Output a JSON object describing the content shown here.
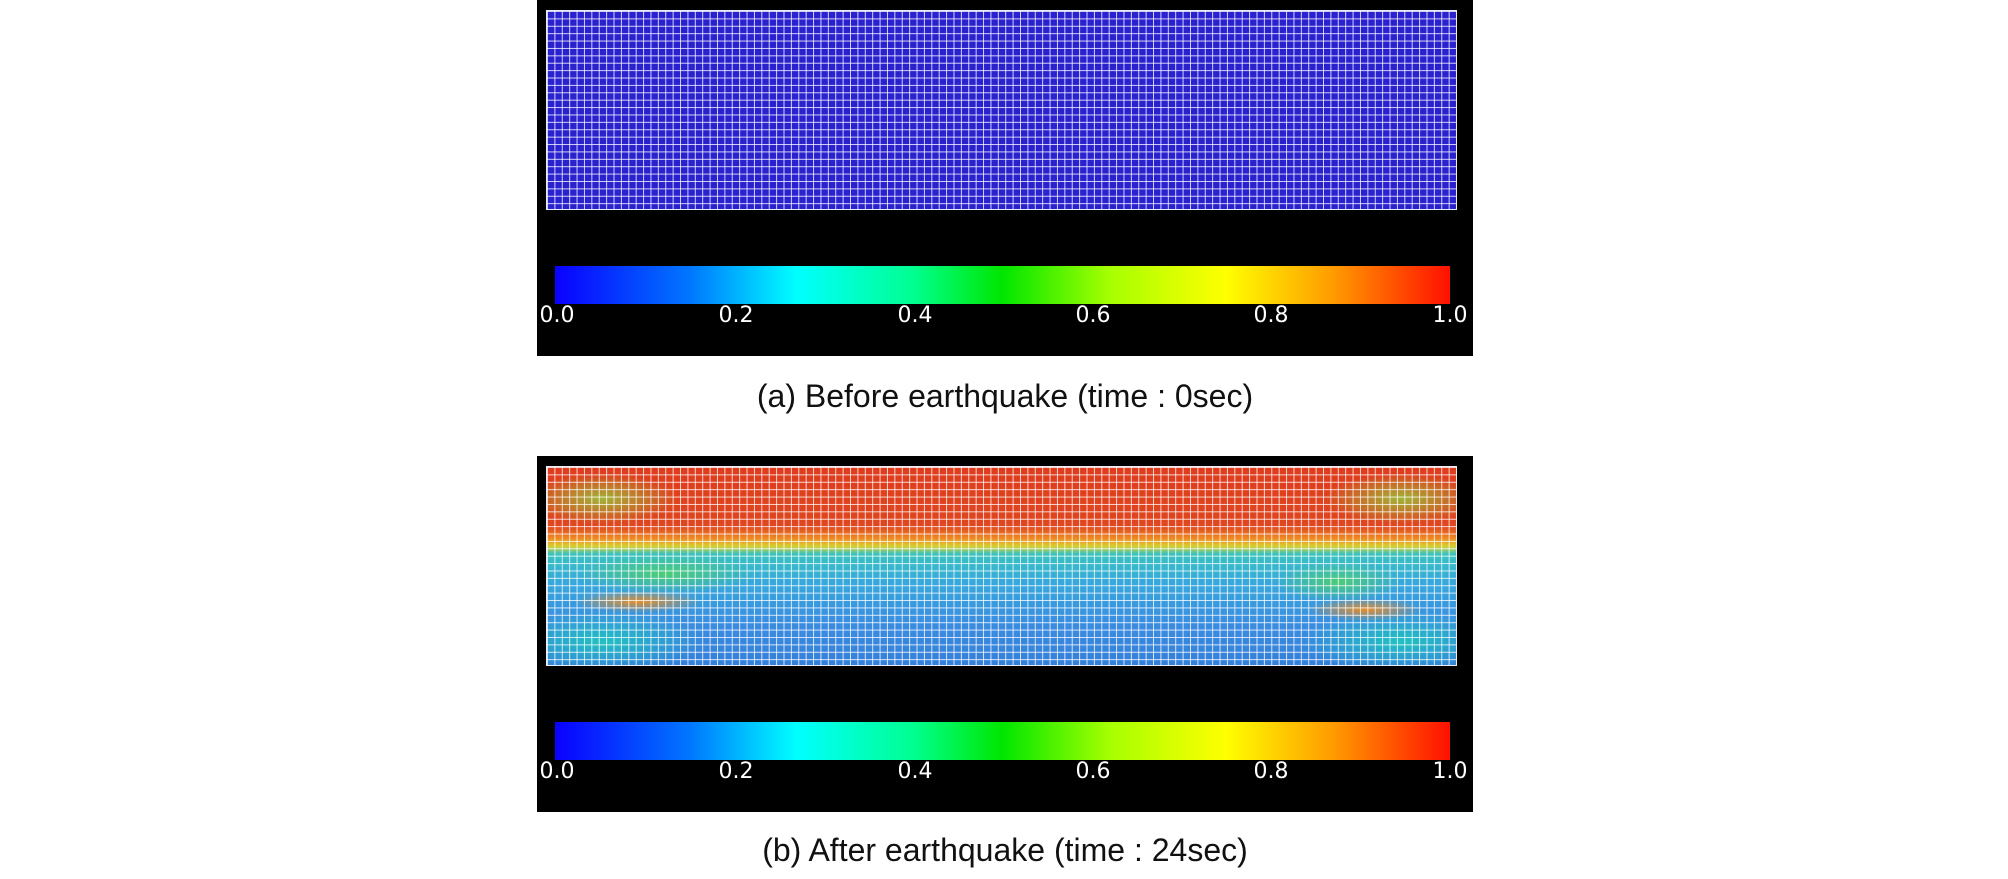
{
  "figure": {
    "panels": [
      {
        "id": "a",
        "caption": "(a) Before earthquake (time : 0sec)",
        "colorbar": {
          "ticks": [
            "0.0",
            "0.2",
            "0.4",
            "0.6",
            "0.8",
            "1.0"
          ],
          "colors": [
            "#0a00ff",
            "#00ffff",
            "#00e600",
            "#ffff00",
            "#ff1000"
          ]
        },
        "mesh_fill_color": "#2b22cf"
      },
      {
        "id": "b",
        "caption": "(b) After earthquake (time : 24sec)",
        "colorbar": {
          "ticks": [
            "0.0",
            "0.2",
            "0.4",
            "0.6",
            "0.8",
            "1.0"
          ],
          "colors": [
            "#0a00ff",
            "#00ffff",
            "#00e600",
            "#ffff00",
            "#ff1000"
          ]
        },
        "mesh_colors": [
          "#df3c1e",
          "#ef8a24",
          "#38c2c0",
          "#3580da"
        ]
      }
    ]
  }
}
